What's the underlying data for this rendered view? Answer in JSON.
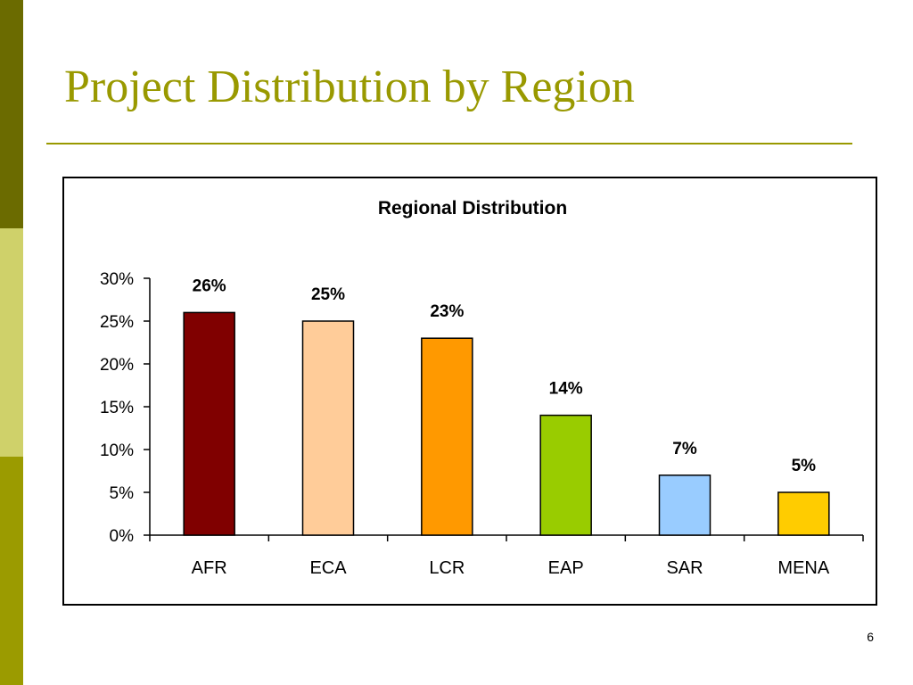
{
  "slide": {
    "title": "Project Distribution by Region",
    "page_number": "6"
  },
  "colors": {
    "sidebar": [
      "#6b6b00",
      "#cfd16a",
      "#9b9b00"
    ],
    "title": "#999900"
  },
  "chart_data": {
    "type": "bar",
    "title": "Regional Distribution",
    "xlabel": "",
    "ylabel": "",
    "categories": [
      "AFR",
      "ECA",
      "LCR",
      "EAP",
      "SAR",
      "MENA"
    ],
    "values": [
      26,
      25,
      23,
      14,
      7,
      5
    ],
    "data_labels": [
      "26%",
      "25%",
      "23%",
      "14%",
      "7%",
      "5%"
    ],
    "colors": [
      "#800000",
      "#ffcc99",
      "#ff9900",
      "#99cc00",
      "#99ccff",
      "#ffcc00"
    ],
    "ylim": [
      0,
      30
    ],
    "yticks": [
      0,
      5,
      10,
      15,
      20,
      25,
      30
    ],
    "ytick_labels": [
      "0%",
      "5%",
      "10%",
      "15%",
      "20%",
      "25%",
      "30%"
    ],
    "grid": false,
    "legend": "none"
  }
}
